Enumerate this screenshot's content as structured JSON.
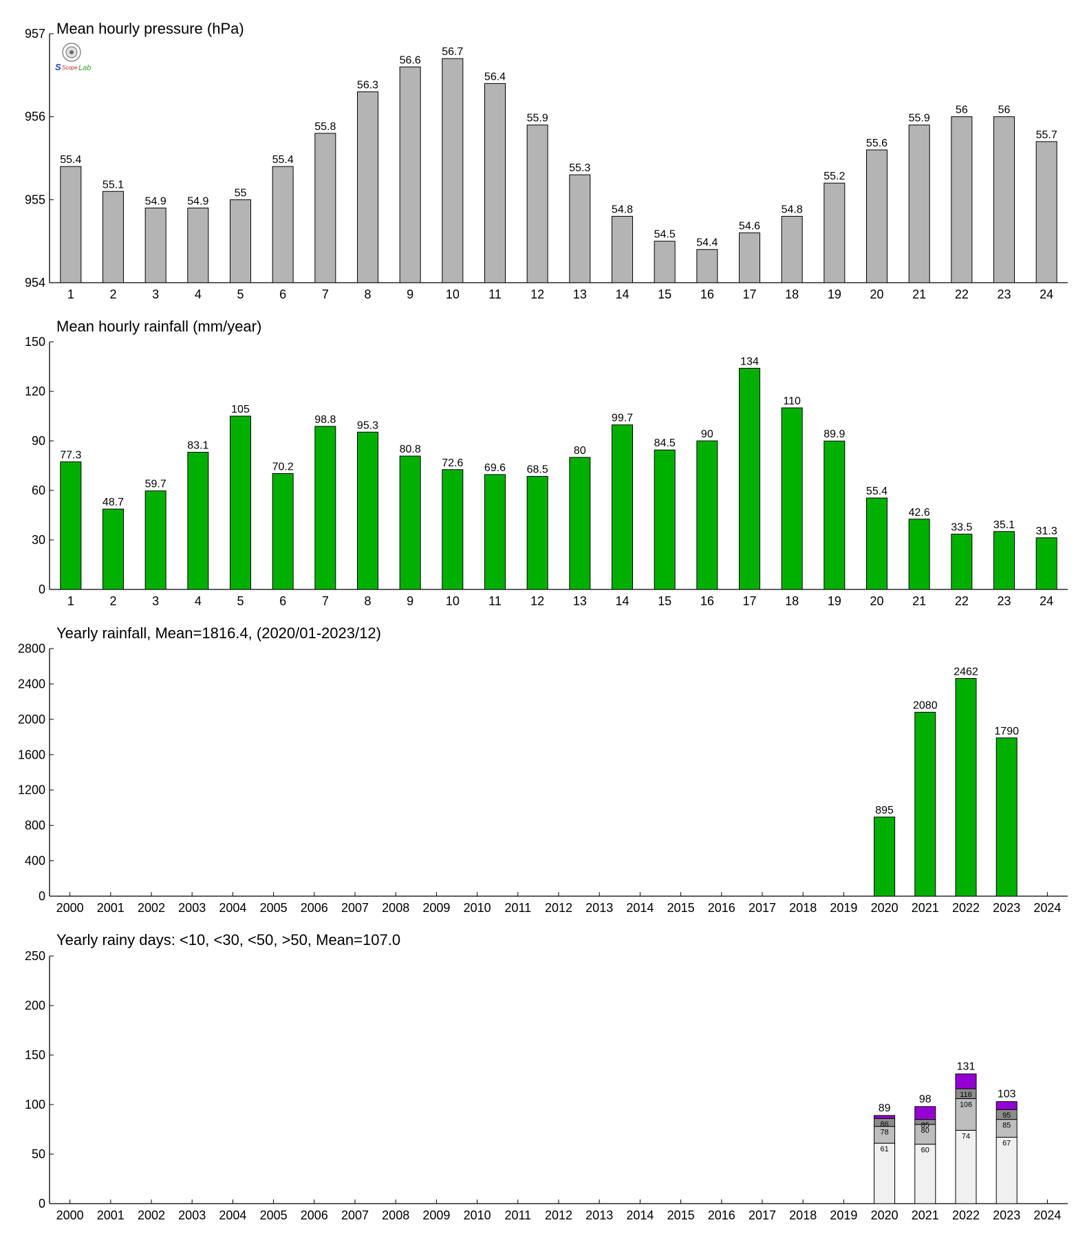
{
  "logo": {
    "text_left": "S",
    "text_mid": "Scope",
    "text_right": "Lab"
  },
  "chart_data": [
    {
      "type": "bar",
      "title": "Mean hourly pressure (hPa)",
      "categories": [
        "1",
        "2",
        "3",
        "4",
        "5",
        "6",
        "7",
        "8",
        "9",
        "10",
        "11",
        "12",
        "13",
        "14",
        "15",
        "16",
        "17",
        "18",
        "19",
        "20",
        "21",
        "22",
        "23",
        "24"
      ],
      "values": [
        955.4,
        955.1,
        954.9,
        954.9,
        955.0,
        955.4,
        955.8,
        956.3,
        956.6,
        956.7,
        956.4,
        955.9,
        955.3,
        954.8,
        954.5,
        954.4,
        954.6,
        954.8,
        955.2,
        955.6,
        955.9,
        956.0,
        956.0,
        955.7
      ],
      "labels": [
        "55.4",
        "55.1",
        "54.9",
        "54.9",
        "55",
        "55.4",
        "55.8",
        "56.3",
        "56.6",
        "56.7",
        "56.4",
        "55.9",
        "55.3",
        "54.8",
        "54.5",
        "54.4",
        "54.6",
        "54.8",
        "55.2",
        "55.6",
        "55.9",
        "56",
        "56",
        "55.7"
      ],
      "ylim": [
        954,
        957
      ],
      "yticks": [
        "954",
        "955",
        "956",
        "957"
      ],
      "color": "#b4b4b4",
      "grid": false
    },
    {
      "type": "bar",
      "title": "Mean hourly rainfall (mm/year)",
      "categories": [
        "1",
        "2",
        "3",
        "4",
        "5",
        "6",
        "7",
        "8",
        "9",
        "10",
        "11",
        "12",
        "13",
        "14",
        "15",
        "16",
        "17",
        "18",
        "19",
        "20",
        "21",
        "22",
        "23",
        "24"
      ],
      "values": [
        77.3,
        48.7,
        59.7,
        83.1,
        105,
        70.2,
        98.8,
        95.3,
        80.8,
        72.6,
        69.6,
        68.5,
        80,
        99.7,
        84.5,
        90,
        134,
        110,
        89.9,
        55.4,
        42.6,
        33.5,
        35.1,
        31.3
      ],
      "labels": [
        "77.3",
        "48.7",
        "59.7",
        "83.1",
        "105",
        "70.2",
        "98.8",
        "95.3",
        "80.8",
        "72.6",
        "69.6",
        "68.5",
        "80",
        "99.7",
        "84.5",
        "90",
        "134",
        "110",
        "89.9",
        "55.4",
        "42.6",
        "33.5",
        "35.1",
        "31.3"
      ],
      "ylim": [
        0,
        150
      ],
      "yticks": [
        "0",
        "30",
        "60",
        "90",
        "120",
        "150"
      ],
      "color": "#00b000",
      "grid": false
    },
    {
      "type": "bar",
      "title": "Yearly rainfall, Mean=1816.4, (2020/01-2023/12)",
      "categories": [
        "2000",
        "2001",
        "2002",
        "2003",
        "2004",
        "2005",
        "2006",
        "2007",
        "2008",
        "2009",
        "2010",
        "2011",
        "2012",
        "2013",
        "2014",
        "2015",
        "2016",
        "2017",
        "2018",
        "2019",
        "2020",
        "2021",
        "2022",
        "2023",
        "2024"
      ],
      "values": [
        null,
        null,
        null,
        null,
        null,
        null,
        null,
        null,
        null,
        null,
        null,
        null,
        null,
        null,
        null,
        null,
        null,
        null,
        null,
        null,
        895,
        2080,
        2462,
        1790,
        null
      ],
      "labels": [
        "",
        "",
        "",
        "",
        "",
        "",
        "",
        "",
        "",
        "",
        "",
        "",
        "",
        "",
        "",
        "",
        "",
        "",
        "",
        "",
        "895",
        "2080",
        "2462",
        "1790",
        ""
      ],
      "ylim": [
        0,
        2800
      ],
      "yticks": [
        "0",
        "400",
        "800",
        "1200",
        "1600",
        "2000",
        "2400",
        "2800"
      ],
      "color": "#00b000",
      "grid": false
    },
    {
      "type": "bar",
      "stacked": true,
      "title": "Yearly rainy days: <10, <30, <50, >50, Mean=107.0",
      "categories": [
        "2000",
        "2001",
        "2002",
        "2003",
        "2004",
        "2005",
        "2006",
        "2007",
        "2008",
        "2009",
        "2010",
        "2011",
        "2012",
        "2013",
        "2014",
        "2015",
        "2016",
        "2017",
        "2018",
        "2019",
        "2020",
        "2021",
        "2022",
        "2023",
        "2024"
      ],
      "bars": [
        {
          "category": "2020",
          "cumulative": [
            61,
            78,
            86,
            89
          ],
          "labels": [
            "61",
            "78",
            "86"
          ],
          "total_label": "89"
        },
        {
          "category": "2021",
          "cumulative": [
            60,
            80,
            85,
            98
          ],
          "labels": [
            "60",
            "80",
            "85"
          ],
          "total_label": "98"
        },
        {
          "category": "2022",
          "cumulative": [
            74,
            106,
            116,
            131
          ],
          "labels": [
            "74",
            "106",
            "116"
          ],
          "total_label": "131"
        },
        {
          "category": "2023",
          "cumulative": [
            67,
            85,
            95,
            103
          ],
          "labels": [
            "67",
            "85",
            "95"
          ],
          "total_label": "103"
        }
      ],
      "series_colors": [
        "#f0f0f0",
        "#bebebe",
        "#8c8c8c",
        "#9400d3"
      ],
      "ylim": [
        0,
        250
      ],
      "yticks": [
        "0",
        "50",
        "100",
        "150",
        "200",
        "250"
      ],
      "grid": false
    }
  ]
}
